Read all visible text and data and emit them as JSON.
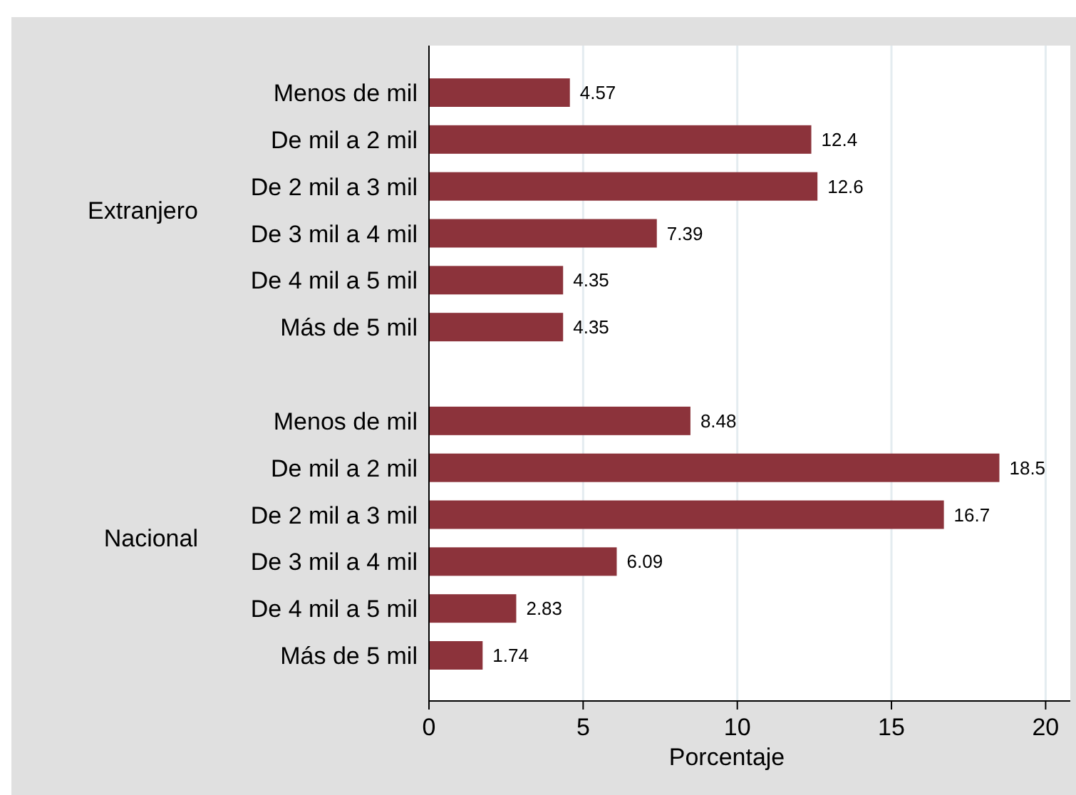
{
  "chart_data": {
    "type": "bar",
    "orientation": "horizontal",
    "xlabel": "Porcentaje",
    "categories": [
      "Menos de mil",
      "De mil a 2 mil",
      "De 2 mil a 3 mil",
      "De 3 mil a 4 mil",
      "De 4 mil a 5 mil",
      "Más de 5 mil",
      null,
      "Menos de mil",
      "De mil a 2 mil",
      "De 2 mil a 3 mil",
      "De 3 mil a 4 mil",
      "De 4 mil a 5 mil",
      "Más de 5 mil"
    ],
    "values": [
      4.57,
      12.4,
      12.6,
      7.39,
      4.35,
      4.35,
      null,
      8.48,
      18.5,
      16.7,
      6.09,
      2.83,
      1.74
    ],
    "color": "#8c333b",
    "data_labels": true,
    "xlim": [
      0,
      20.8
    ],
    "xticks": [
      0,
      5,
      10,
      15,
      20
    ],
    "grid": "x",
    "annotations": [
      "Extranjero",
      "Nacional"
    ]
  }
}
